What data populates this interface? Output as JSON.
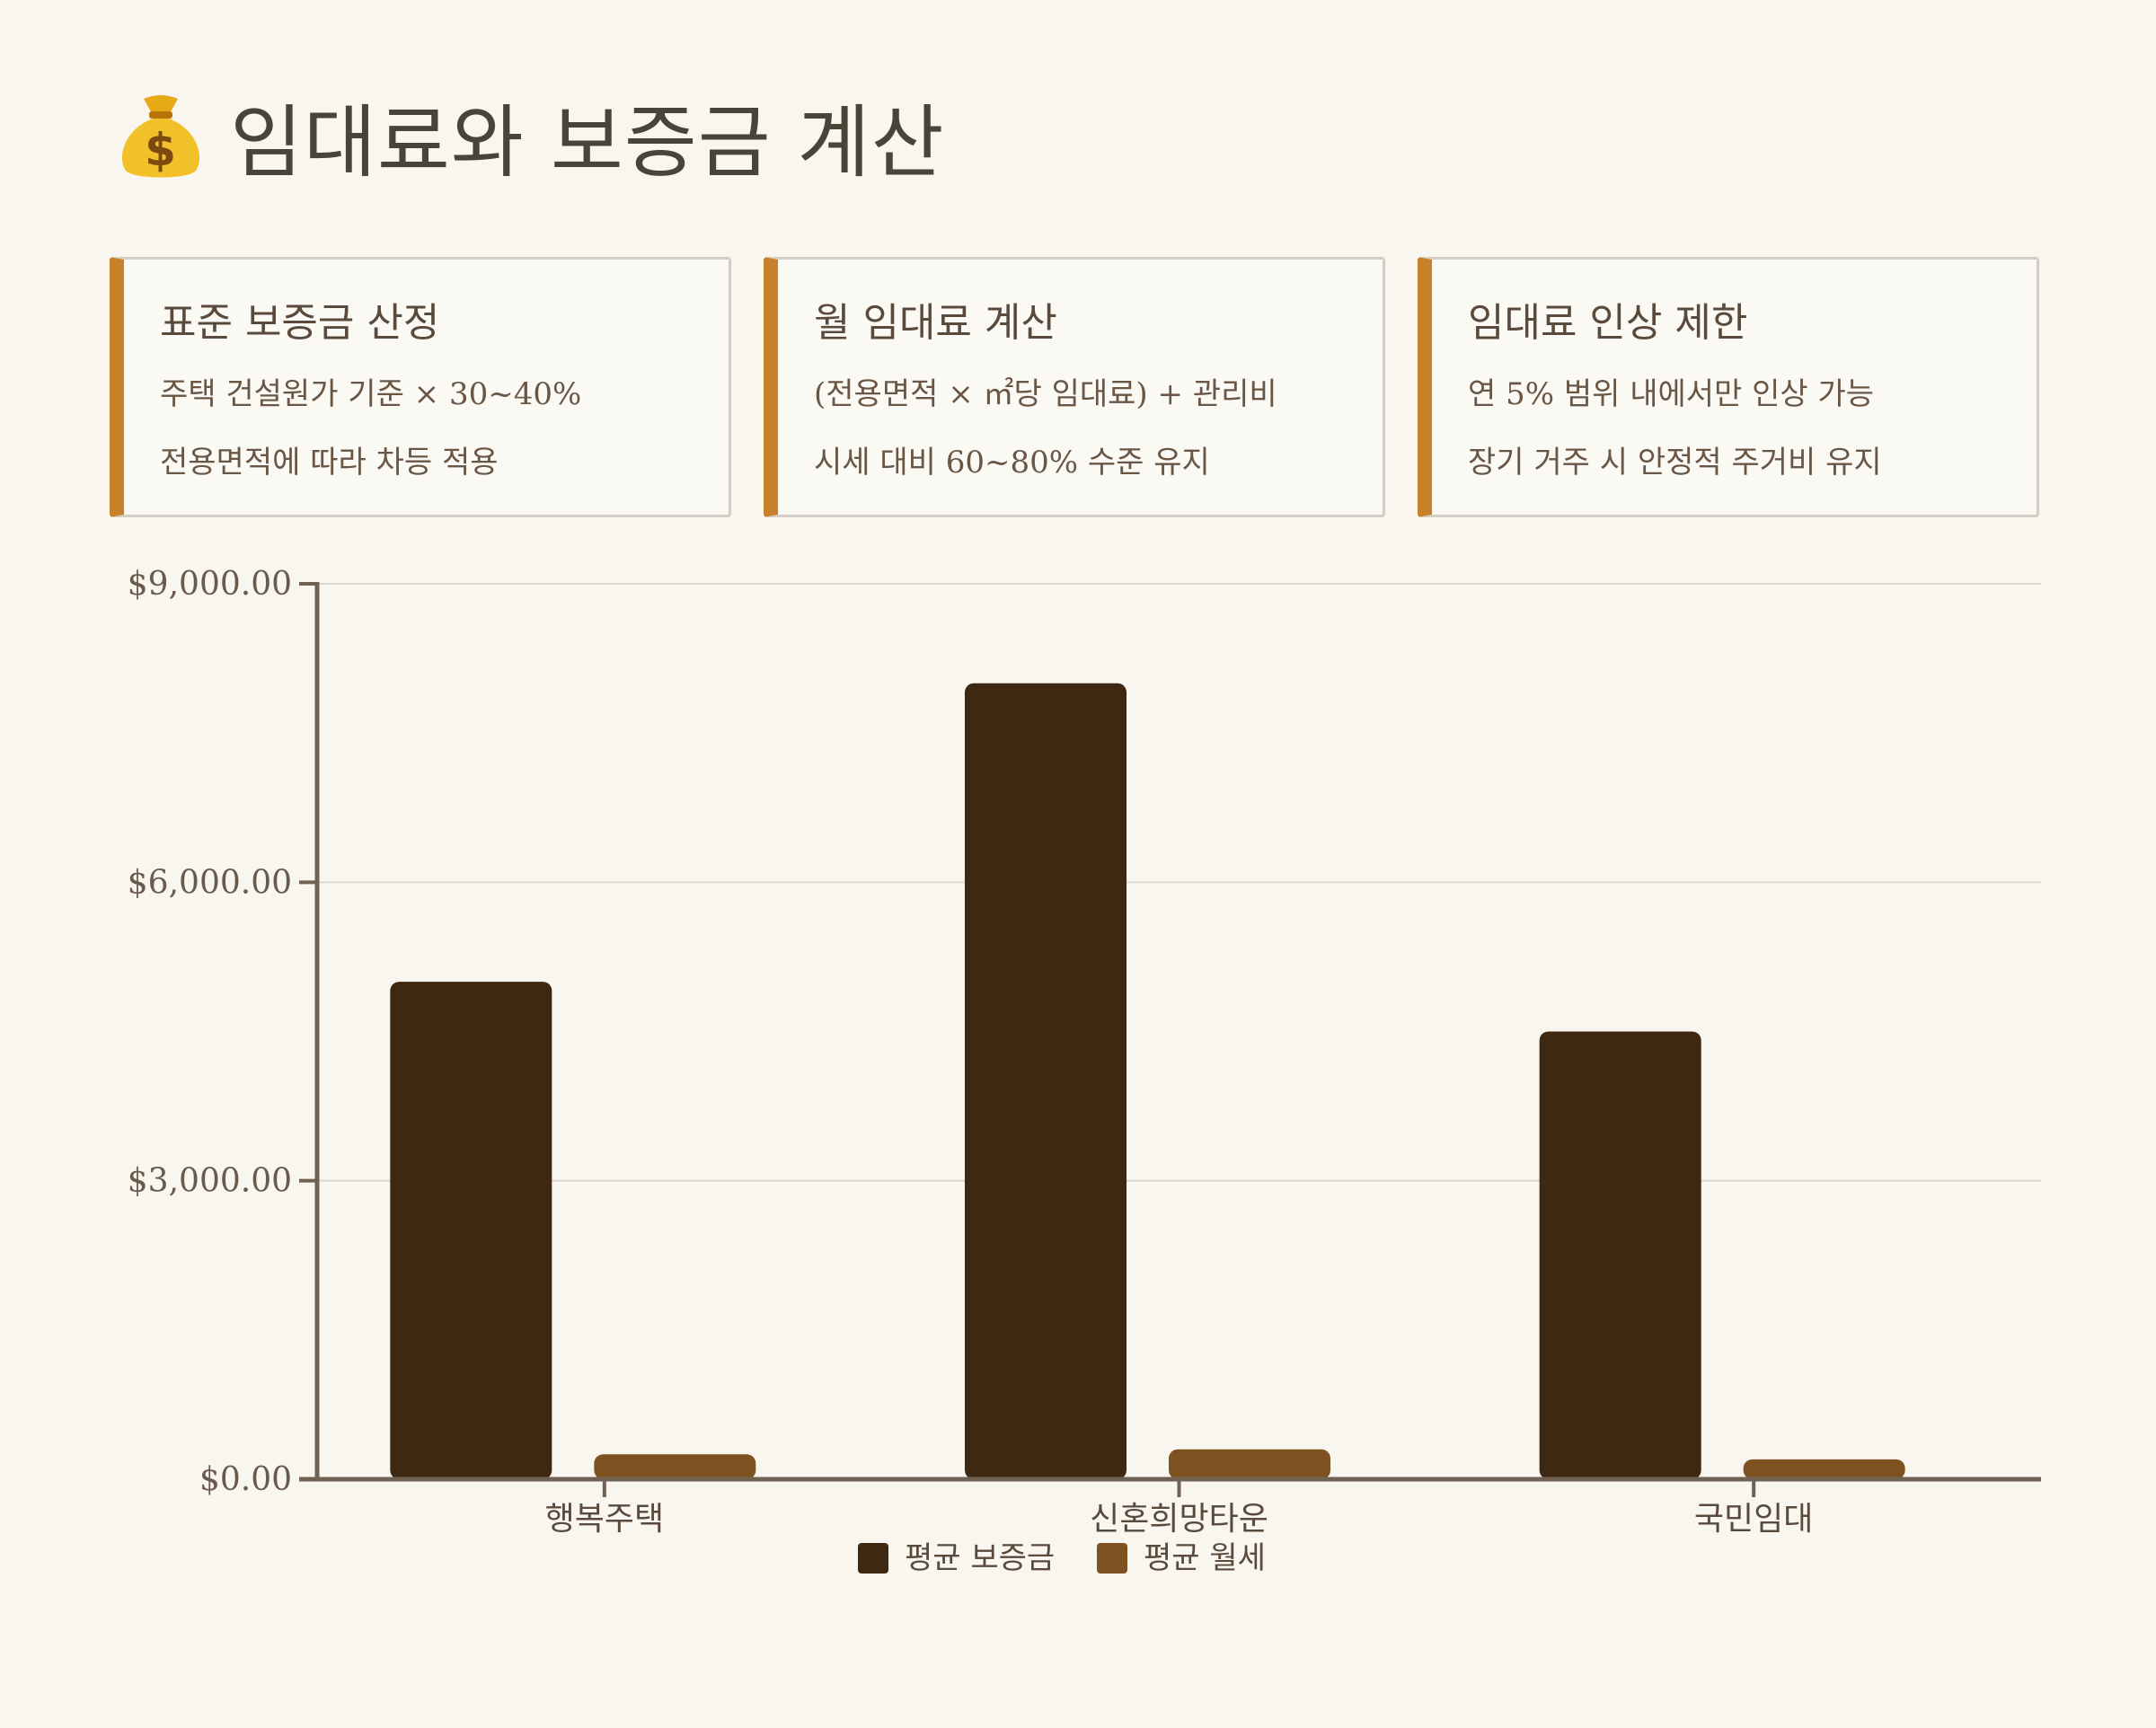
{
  "page": {
    "title": "임대료와 보증금 계산",
    "title_icon": "money-bag-icon"
  },
  "cards": [
    {
      "title": "표준 보증금 산정",
      "lines": [
        "주택 건설원가 기준 × 30~40%",
        "전용면적에 따라 차등 적용"
      ]
    },
    {
      "title": "월 임대료 계산",
      "lines": [
        "(전용면적 × ㎡당 임대료) + 관리비",
        "시세 대비 60~80% 수준 유지"
      ]
    },
    {
      "title": "임대료 인상 제한",
      "lines": [
        "연 5% 범위 내에서만 인상 가능",
        "장기 거주 시 안정적 주거비 유지"
      ]
    }
  ],
  "colors": {
    "accent": "#c8802a",
    "deposit": "#3e2811",
    "rent": "#7e5220",
    "axis": "#6f6253",
    "grid": "#dcd8d0"
  },
  "chart_data": {
    "type": "bar",
    "categories": [
      "행복주택",
      "신혼희망타운",
      "국민임대"
    ],
    "series": [
      {
        "name": "평균 보증금",
        "values": [
          5000,
          8000,
          4500
        ]
      },
      {
        "name": "평균 월세",
        "values": [
          250,
          300,
          200
        ]
      }
    ],
    "ylim": [
      0,
      9000
    ],
    "yticks": [
      0,
      3000,
      6000,
      9000
    ],
    "ytick_labels": [
      "$0.00",
      "$3,000.00",
      "$6,000.00",
      "$9,000.00"
    ],
    "xlabel": "",
    "ylabel": "",
    "grid": true,
    "legend_position": "bottom-center"
  }
}
